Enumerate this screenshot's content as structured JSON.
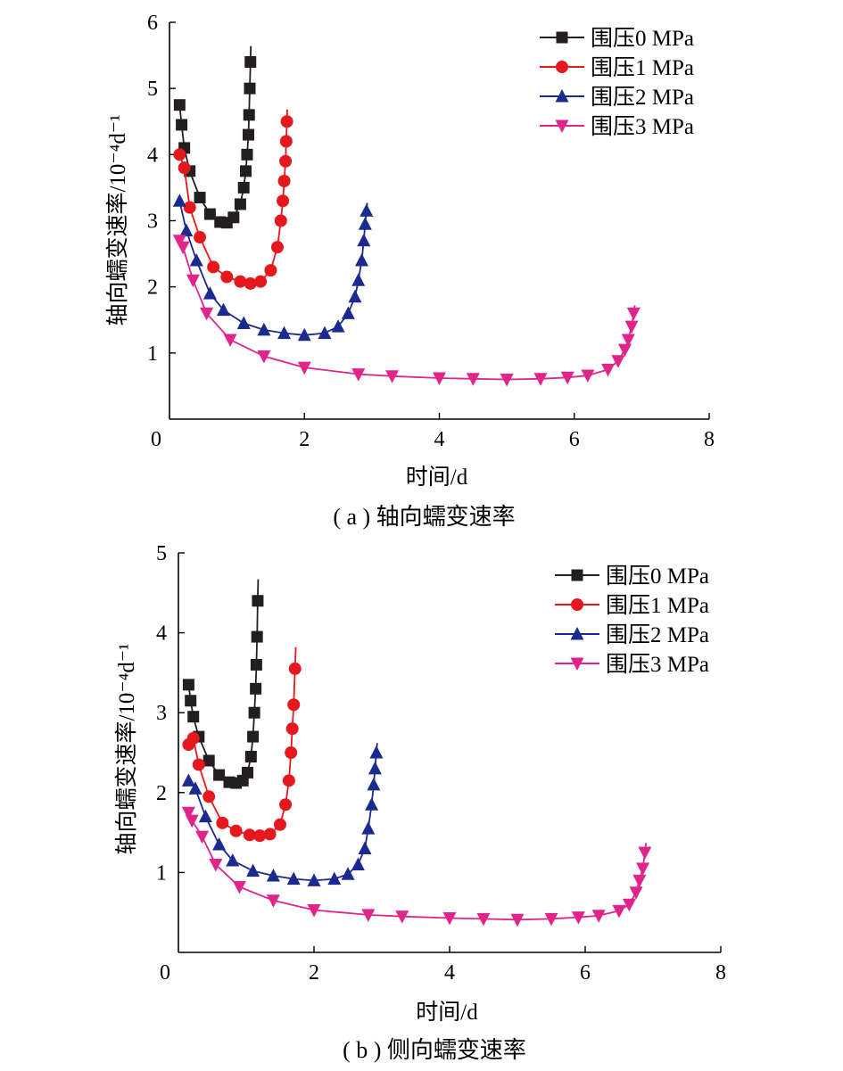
{
  "colors": {
    "series": [
      "#231f20",
      "#e5181e",
      "#1b2a8f",
      "#e0248a"
    ],
    "axis": "#000000"
  },
  "chart_data": [
    {
      "type": "line",
      "caption": "( a ) 轴向蠕变速率",
      "xlabel": "时间/d",
      "ylabel": "轴向蠕变速率/10⁻⁴d⁻¹",
      "xlim": [
        0,
        8
      ],
      "ylim": [
        0,
        6
      ],
      "xticks": [
        0,
        2,
        4,
        6,
        8
      ],
      "yticks": [
        1,
        2,
        3,
        4,
        5,
        6
      ],
      "grid": false,
      "legend": "top-right",
      "series": [
        {
          "name": "围压0 MPa",
          "marker": "square",
          "x": [
            0.15,
            0.18,
            0.22,
            0.3,
            0.45,
            0.6,
            0.75,
            0.85,
            0.95,
            1.05,
            1.1,
            1.13,
            1.15,
            1.17,
            1.18,
            1.19,
            1.2
          ],
          "y": [
            4.75,
            4.45,
            4.1,
            3.75,
            3.35,
            3.1,
            2.98,
            2.97,
            3.05,
            3.25,
            3.5,
            3.75,
            4.0,
            4.3,
            4.6,
            5.0,
            5.4
          ]
        },
        {
          "name": "围压1 MPa",
          "marker": "circle",
          "x": [
            0.15,
            0.22,
            0.3,
            0.45,
            0.65,
            0.85,
            1.05,
            1.2,
            1.35,
            1.5,
            1.6,
            1.65,
            1.68,
            1.7,
            1.72,
            1.73,
            1.74
          ],
          "y": [
            4.0,
            3.8,
            3.2,
            2.75,
            2.3,
            2.15,
            2.08,
            2.05,
            2.08,
            2.25,
            2.6,
            3.0,
            3.3,
            3.6,
            3.9,
            4.2,
            4.5
          ]
        },
        {
          "name": "围压2 MPa",
          "marker": "triangle-up",
          "x": [
            0.15,
            0.25,
            0.4,
            0.6,
            0.8,
            1.1,
            1.4,
            1.7,
            2.0,
            2.3,
            2.5,
            2.65,
            2.75,
            2.8,
            2.85,
            2.88,
            2.9,
            2.92
          ],
          "y": [
            3.3,
            2.85,
            2.4,
            1.9,
            1.65,
            1.45,
            1.35,
            1.3,
            1.27,
            1.3,
            1.4,
            1.6,
            1.85,
            2.1,
            2.4,
            2.7,
            2.95,
            3.15
          ]
        },
        {
          "name": "围压3 MPa",
          "marker": "triangle-down",
          "x": [
            0.15,
            0.2,
            0.35,
            0.55,
            0.9,
            1.4,
            2.0,
            2.8,
            3.3,
            4.0,
            4.5,
            5.0,
            5.5,
            5.9,
            6.2,
            6.5,
            6.65,
            6.75,
            6.8,
            6.85,
            6.88
          ],
          "y": [
            2.7,
            2.6,
            2.1,
            1.6,
            1.2,
            0.95,
            0.78,
            0.68,
            0.65,
            0.62,
            0.61,
            0.6,
            0.61,
            0.63,
            0.66,
            0.75,
            0.88,
            1.05,
            1.2,
            1.4,
            1.6
          ]
        }
      ]
    },
    {
      "type": "line",
      "caption": "( b ) 侧向蠕变速率",
      "xlabel": "时间/d",
      "ylabel": "轴向蠕变速率/10⁻⁴d⁻¹",
      "xlim": [
        0,
        8
      ],
      "ylim": [
        0,
        5
      ],
      "xticks": [
        0,
        2,
        4,
        6,
        8
      ],
      "yticks": [
        1,
        2,
        3,
        4,
        5
      ],
      "grid": false,
      "legend": "top-right",
      "series": [
        {
          "name": "围压0 MPa",
          "marker": "square",
          "x": [
            0.15,
            0.18,
            0.22,
            0.3,
            0.45,
            0.6,
            0.75,
            0.85,
            0.95,
            1.02,
            1.07,
            1.1,
            1.12,
            1.14,
            1.15,
            1.16,
            1.17
          ],
          "y": [
            3.35,
            3.15,
            2.95,
            2.7,
            2.4,
            2.22,
            2.13,
            2.12,
            2.15,
            2.25,
            2.45,
            2.7,
            3.0,
            3.3,
            3.6,
            3.95,
            4.4
          ]
        },
        {
          "name": "围压1 MPa",
          "marker": "circle",
          "x": [
            0.15,
            0.22,
            0.3,
            0.45,
            0.65,
            0.85,
            1.05,
            1.2,
            1.35,
            1.5,
            1.58,
            1.63,
            1.66,
            1.68,
            1.7,
            1.72
          ],
          "y": [
            2.6,
            2.68,
            2.35,
            1.95,
            1.62,
            1.52,
            1.47,
            1.46,
            1.48,
            1.6,
            1.85,
            2.15,
            2.5,
            2.8,
            3.1,
            3.55
          ]
        },
        {
          "name": "围压2 MPa",
          "marker": "triangle-up",
          "x": [
            0.15,
            0.25,
            0.4,
            0.6,
            0.8,
            1.1,
            1.4,
            1.7,
            2.0,
            2.3,
            2.5,
            2.65,
            2.75,
            2.8,
            2.85,
            2.88,
            2.9,
            2.92
          ],
          "y": [
            2.15,
            2.05,
            1.7,
            1.35,
            1.15,
            1.02,
            0.96,
            0.92,
            0.9,
            0.92,
            0.98,
            1.1,
            1.3,
            1.55,
            1.85,
            2.1,
            2.3,
            2.5
          ]
        },
        {
          "name": "围压3 MPa",
          "marker": "triangle-down",
          "x": [
            0.15,
            0.2,
            0.35,
            0.55,
            0.9,
            1.4,
            2.0,
            2.8,
            3.3,
            4.0,
            4.5,
            5.0,
            5.5,
            5.9,
            6.2,
            6.5,
            6.65,
            6.75,
            6.8,
            6.85,
            6.88
          ],
          "y": [
            1.75,
            1.65,
            1.45,
            1.1,
            0.82,
            0.65,
            0.53,
            0.47,
            0.45,
            0.43,
            0.42,
            0.41,
            0.42,
            0.44,
            0.46,
            0.52,
            0.6,
            0.75,
            0.9,
            1.05,
            1.25
          ]
        }
      ]
    }
  ]
}
